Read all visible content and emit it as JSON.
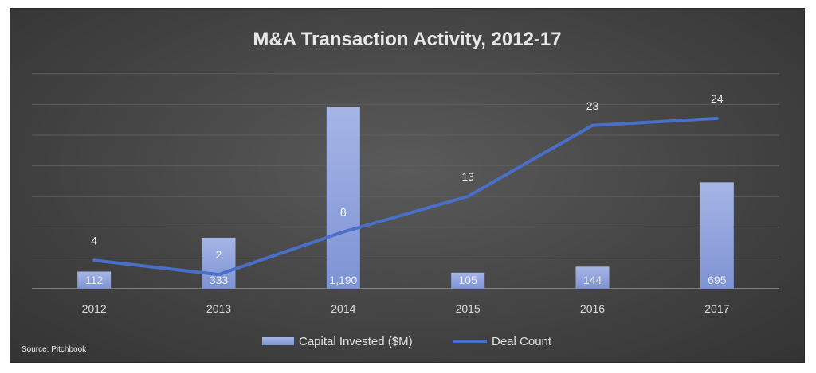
{
  "chart_data": {
    "type": "bar",
    "title": "M&A Transaction Activity, 2012-17",
    "categories": [
      "2012",
      "2013",
      "2014",
      "2015",
      "2016",
      "2017"
    ],
    "series": [
      {
        "name": "Capital Invested ($M)",
        "type": "bar",
        "values": [
          112,
          333,
          1190,
          105,
          144,
          695
        ],
        "labels": [
          "112",
          "333",
          "1,190",
          "105",
          "144",
          "695"
        ],
        "color": "#8fa2dc"
      },
      {
        "name": "Deal Count",
        "type": "line",
        "values": [
          4,
          2,
          8,
          13,
          23,
          24
        ],
        "labels": [
          "4",
          "2",
          "8",
          "13",
          "23",
          "24"
        ],
        "color": "#4a6fc8"
      }
    ],
    "grid": true,
    "legend": "bottom",
    "source": "Source: Pitchbook"
  }
}
